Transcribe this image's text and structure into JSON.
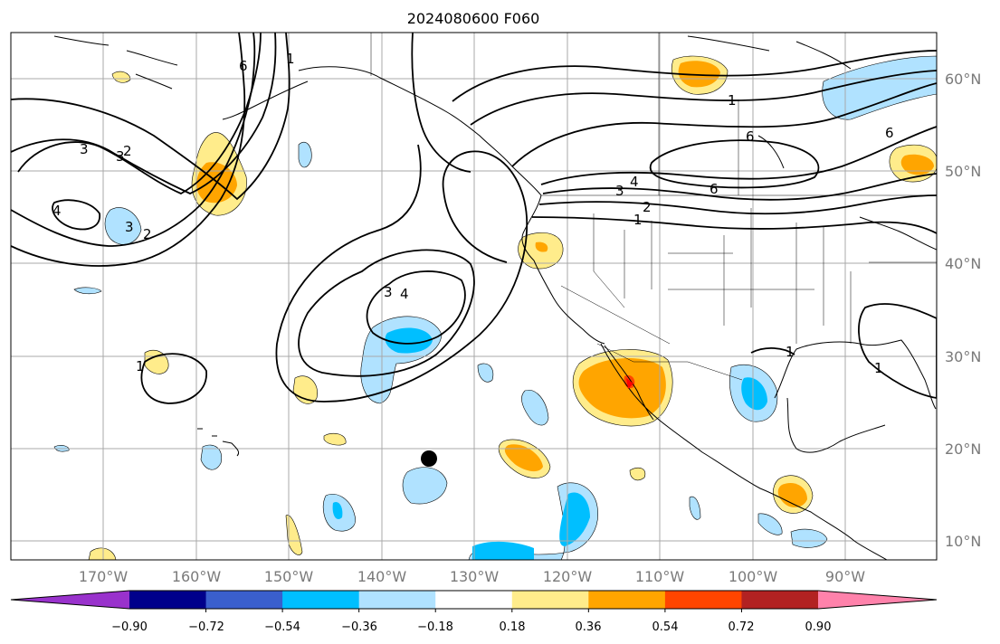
{
  "title": "2024080600 F060",
  "lon_labels": [
    "170°W",
    "160°W",
    "150°W",
    "140°W",
    "130°W",
    "120°W",
    "110°W",
    "100°W",
    "90°W"
  ],
  "lat_labels": [
    "60°N",
    "50°N",
    "40°N",
    "30°N",
    "20°N",
    "10°N"
  ],
  "colorbar": {
    "labels": [
      "−0.90",
      "−0.72",
      "−0.54",
      "−0.36",
      "−0.18",
      "0.18",
      "0.36",
      "0.54",
      "0.72",
      "0.90"
    ],
    "colors": [
      "#9932cc",
      "#00008b",
      "#3a5fcd",
      "#00bfff",
      "#b0e2ff",
      "#ffffff",
      "#ffec8b",
      "#ffa500",
      "#ff4500",
      "#b22222",
      "#ff82ab"
    ]
  },
  "shading_colors": {
    "pos_weak": "#ffec8b",
    "pos_mid": "#ffa500",
    "pos_strong": "#ff4500",
    "neg_weak": "#b0e2ff",
    "neg_mid": "#00bfff"
  },
  "contour_labels": [
    "3",
    "3",
    "4",
    "3",
    "2",
    "6",
    "1",
    "1",
    "3",
    "4",
    "1",
    "4",
    "3",
    "2",
    "1",
    "6",
    "6",
    "6",
    "1",
    "1",
    "2"
  ],
  "marker": "storm-center-dot"
}
